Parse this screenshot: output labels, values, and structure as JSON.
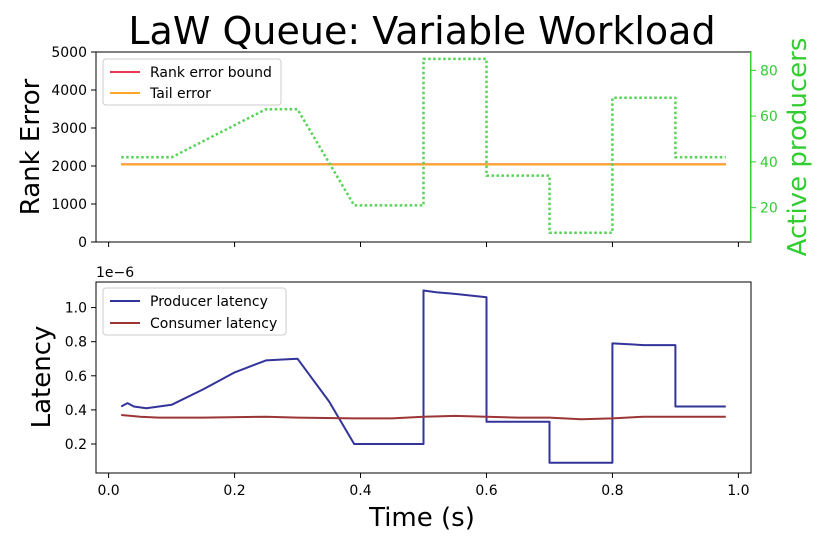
{
  "figure": {
    "title": "LaW Queue: Variable Workload",
    "xlabel": "Time (s)",
    "x_ticks": [
      "0.0",
      "0.2",
      "0.4",
      "0.6",
      "0.8",
      "1.0"
    ]
  },
  "chart_data": [
    {
      "type": "line",
      "ylabel": "Rank Error",
      "y2label": "Active producers",
      "xlim": [
        -0.02,
        1.02
      ],
      "ylim": [
        0,
        5000
      ],
      "y2lim": [
        5,
        88
      ],
      "y_ticks": [
        "0",
        "1000",
        "2000",
        "3000",
        "4000",
        "5000"
      ],
      "y2_ticks": [
        "20",
        "40",
        "60",
        "80"
      ],
      "legend_position": "top-left",
      "series": [
        {
          "name": "Rank error bound",
          "color": "#e8384f",
          "axis": "left",
          "style": "solid",
          "x": [
            0.02,
            0.98
          ],
          "y": [
            2048,
            2048
          ]
        },
        {
          "name": "Tail error",
          "color": "#ffa726",
          "axis": "left",
          "style": "solid",
          "x": [
            0.02,
            0.98
          ],
          "y": [
            2040,
            2040
          ]
        },
        {
          "name": "",
          "color": "#55d455",
          "axis": "right",
          "style": "dotted",
          "x": [
            0.02,
            0.1,
            0.25,
            0.3,
            0.39,
            0.5,
            0.5,
            0.6,
            0.6,
            0.7,
            0.7,
            0.8,
            0.8,
            0.9,
            0.9,
            0.98
          ],
          "y": [
            42,
            42,
            63,
            63,
            21,
            21,
            85,
            85,
            34,
            34,
            9,
            9,
            68,
            68,
            42,
            42
          ]
        }
      ]
    },
    {
      "type": "line",
      "ylabel": "Latency",
      "offset_text": "1e−6",
      "xlim": [
        -0.02,
        1.02
      ],
      "ylim": [
        0.03,
        1.15
      ],
      "y_ticks": [
        "0.2",
        "0.4",
        "0.6",
        "0.8",
        "1.0"
      ],
      "legend_position": "top-left",
      "series": [
        {
          "name": "Producer latency",
          "color": "#33349a",
          "x": [
            0.02,
            0.03,
            0.04,
            0.06,
            0.08,
            0.1,
            0.15,
            0.2,
            0.25,
            0.3,
            0.35,
            0.39,
            0.5,
            0.5,
            0.52,
            0.55,
            0.6,
            0.6,
            0.65,
            0.7,
            0.7,
            0.75,
            0.8,
            0.8,
            0.85,
            0.9,
            0.9,
            0.95,
            0.98
          ],
          "y": [
            0.42,
            0.44,
            0.42,
            0.41,
            0.42,
            0.43,
            0.52,
            0.62,
            0.69,
            0.7,
            0.45,
            0.2,
            0.2,
            1.1,
            1.09,
            1.08,
            1.06,
            0.33,
            0.33,
            0.33,
            0.09,
            0.09,
            0.09,
            0.79,
            0.78,
            0.78,
            0.42,
            0.42,
            0.42
          ]
        },
        {
          "name": "Consumer latency",
          "color": "#9c3535",
          "x": [
            0.02,
            0.05,
            0.08,
            0.15,
            0.25,
            0.3,
            0.39,
            0.45,
            0.5,
            0.55,
            0.6,
            0.65,
            0.7,
            0.75,
            0.8,
            0.85,
            0.9,
            0.98
          ],
          "y": [
            0.37,
            0.36,
            0.355,
            0.355,
            0.36,
            0.355,
            0.35,
            0.35,
            0.36,
            0.365,
            0.36,
            0.355,
            0.355,
            0.345,
            0.35,
            0.36,
            0.36,
            0.36
          ]
        }
      ]
    }
  ]
}
